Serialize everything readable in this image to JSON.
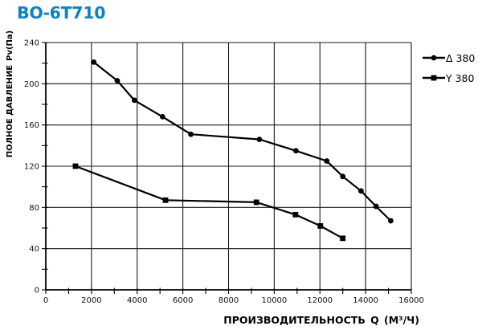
{
  "title": {
    "text": "ВО-6Т710",
    "color": "#0d81c6"
  },
  "legend": {
    "position": "top-right-outside",
    "items": [
      {
        "label": "Δ 380",
        "marker": "circle",
        "color": "#000000"
      },
      {
        "label": "Y 380",
        "marker": "square",
        "color": "#000000"
      }
    ]
  },
  "chart_data": {
    "type": "line",
    "title": "ВО-6Т710",
    "xlabel": "ПРОИЗВОДИТЕЛЬНОСТЬ Q (М³/Ч)",
    "ylabel": "ПОЛНОЕ ДАВЛЕНИЕ Pv(Па)",
    "xlim": [
      0,
      16000
    ],
    "ylim": [
      0,
      240
    ],
    "x_ticks": [
      0,
      2000,
      4000,
      6000,
      8000,
      10000,
      12000,
      14000,
      16000
    ],
    "y_ticks": [
      0,
      40,
      80,
      120,
      160,
      200,
      240
    ],
    "x_minor_step": 1000,
    "y_minor_step": 20,
    "grid": true,
    "grid_color": "#1a1a1a",
    "line_color": "#000000",
    "legend_position": "top-right-outside",
    "series": [
      {
        "name": "Δ 380",
        "marker": "circle",
        "color": "#000000",
        "points": [
          [
            2100,
            221
          ],
          [
            3130,
            203
          ],
          [
            3880,
            184
          ],
          [
            5110,
            168
          ],
          [
            6350,
            151
          ],
          [
            9350,
            146
          ],
          [
            10950,
            135
          ],
          [
            12300,
            125
          ],
          [
            13000,
            110
          ],
          [
            13800,
            96
          ],
          [
            14460,
            81
          ],
          [
            15100,
            67
          ]
        ]
      },
      {
        "name": "Y 380",
        "marker": "square",
        "color": "#000000",
        "points": [
          [
            1300,
            120
          ],
          [
            5240,
            87
          ],
          [
            9220,
            85
          ],
          [
            10930,
            73
          ],
          [
            12020,
            62
          ],
          [
            13000,
            50
          ]
        ]
      }
    ]
  }
}
